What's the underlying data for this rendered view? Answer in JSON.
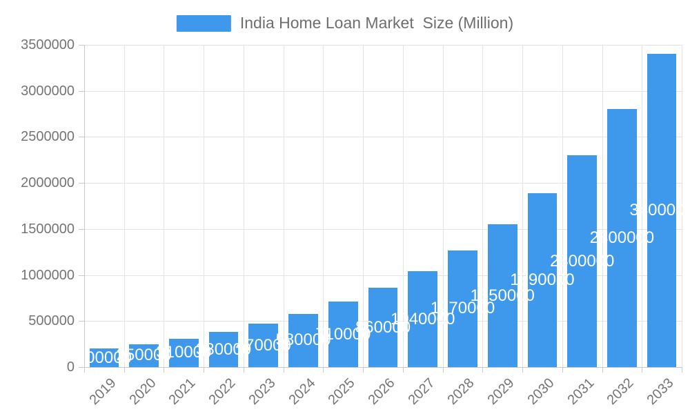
{
  "legend": {
    "label": "India Home Loan Market  Size (Million)",
    "swatch_color": "#3e99ed"
  },
  "chart_data": {
    "type": "bar",
    "title": "India Home Loan Market  Size (Million)",
    "series_name": "India Home Loan Market Size (Million)",
    "categories": [
      "2019",
      "2020",
      "2021",
      "2022",
      "2023",
      "2024",
      "2025",
      "2026",
      "2027",
      "2028",
      "2029",
      "2030",
      "2031",
      "2032",
      "2033"
    ],
    "values": [
      200000,
      250000,
      310000,
      380000,
      470000,
      580000,
      710000,
      860000,
      1040000,
      1270000,
      1550000,
      1890000,
      2300000,
      2800000,
      3400000
    ],
    "xlabel": "",
    "ylabel": "",
    "ylim": [
      0,
      3500000
    ],
    "yticks": [
      0,
      500000,
      1000000,
      1500000,
      2000000,
      2500000,
      3000000,
      3500000
    ],
    "grid": true,
    "legend_position": "top-center",
    "bar_color": "#3e99ed",
    "bar_label_color": "#ffffff",
    "axis_text_color": "#757575",
    "grid_color": "#e3e3e3",
    "axis_line_color": "#c9c9c9"
  }
}
